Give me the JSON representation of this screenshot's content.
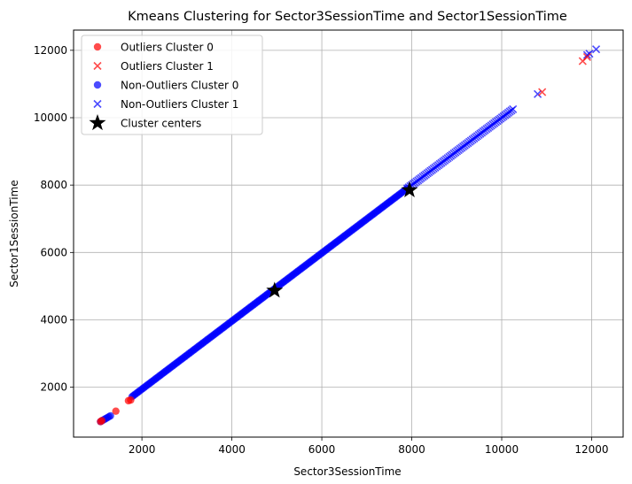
{
  "chart_data": {
    "type": "scatter",
    "title": "Kmeans Clustering for Sector3SessionTime and Sector1SessionTime",
    "xlabel": "Sector3SessionTime",
    "ylabel": "Sector1SessionTime",
    "xlim": [
      480,
      12700
    ],
    "ylim": [
      520,
      12600
    ],
    "xticks": [
      2000,
      4000,
      6000,
      8000,
      10000,
      12000
    ],
    "yticks": [
      2000,
      4000,
      6000,
      8000,
      10000,
      12000
    ],
    "grid": true,
    "legend_position": "top-left",
    "series": [
      {
        "name": "Outliers Cluster 0",
        "marker": "circle",
        "color": "#ff0000",
        "points": [
          [
            1080,
            980
          ],
          [
            1110,
            1010
          ],
          [
            1420,
            1290
          ],
          [
            1700,
            1600
          ],
          [
            1750,
            1620
          ]
        ]
      },
      {
        "name": "Outliers Cluster 1",
        "marker": "x",
        "color": "#ff0000",
        "points": [
          [
            10900,
            10760
          ],
          [
            11800,
            11680
          ],
          [
            11900,
            11800
          ]
        ]
      },
      {
        "name": "Non-Outliers Cluster 0",
        "marker": "circle",
        "color": "#0000ff",
        "segments": [
          [
            1080,
            980,
            1300,
            1150
          ],
          [
            1780,
            1720,
            7900,
            7900
          ]
        ]
      },
      {
        "name": "Non-Outliers Cluster 1",
        "marker": "x",
        "color": "#0000ff",
        "segments": [
          [
            7900,
            7900,
            10250,
            10250
          ]
        ],
        "points": [
          [
            10800,
            10700
          ],
          [
            11900,
            11860
          ],
          [
            11950,
            11900
          ],
          [
            12100,
            12030
          ]
        ]
      },
      {
        "name": "Cluster centers",
        "marker": "star",
        "color": "#000000",
        "points": [
          [
            4950,
            4870
          ],
          [
            7950,
            7850
          ]
        ]
      }
    ]
  }
}
